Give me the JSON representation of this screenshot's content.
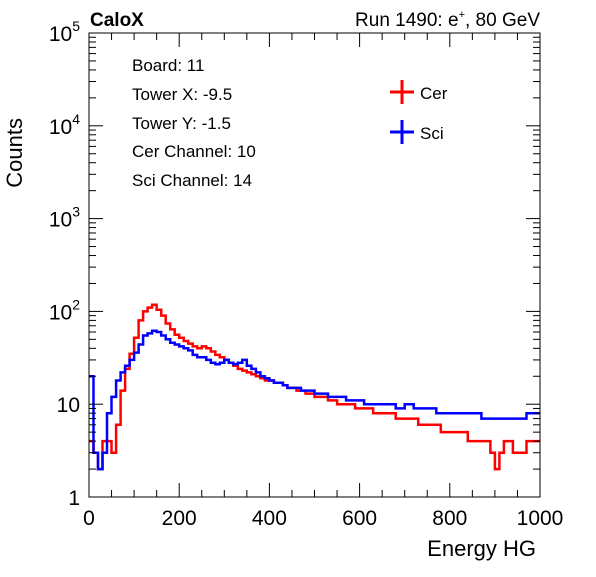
{
  "header": {
    "brand": "CaloX",
    "run_prefix": "Run 1490: e",
    "run_sup": "+",
    "run_suffix": ", 80 GeV"
  },
  "info_box": {
    "lines": [
      "Board: 11",
      "Tower X: -9.5",
      "Tower Y: -1.5",
      "Cer Channel: 10",
      "Sci Channel: 14"
    ]
  },
  "chart_data": {
    "type": "line",
    "title": "",
    "xlabel": "Energy HG",
    "ylabel": "Counts",
    "xlim": [
      0,
      1000
    ],
    "ylim": [
      1,
      100000
    ],
    "y_scale": "log",
    "grid": false,
    "legend_position": "top-right",
    "x_ticks": [
      "0",
      "200",
      "400",
      "600",
      "800",
      "1000"
    ],
    "y_ticks": [
      {
        "base": "1",
        "exp": ""
      },
      {
        "base": "10",
        "exp": ""
      },
      {
        "base": "10",
        "exp": "2"
      },
      {
        "base": "10",
        "exp": "3"
      },
      {
        "base": "10",
        "exp": "4"
      },
      {
        "base": "10",
        "exp": "5"
      }
    ],
    "series": [
      {
        "name": "Cer",
        "color": "#ff0000",
        "x": [
          0,
          10,
          20,
          30,
          40,
          50,
          60,
          70,
          80,
          90,
          100,
          110,
          120,
          130,
          140,
          150,
          160,
          170,
          180,
          190,
          200,
          210,
          220,
          230,
          240,
          250,
          260,
          270,
          280,
          290,
          300,
          310,
          320,
          330,
          340,
          350,
          360,
          370,
          380,
          390,
          400,
          410,
          420,
          430,
          440,
          450,
          460,
          470,
          480,
          490,
          500,
          510,
          520,
          530,
          540,
          550,
          560,
          570,
          580,
          590,
          600,
          610,
          620,
          630,
          640,
          650,
          660,
          670,
          680,
          690,
          700,
          710,
          720,
          730,
          740,
          750,
          760,
          770,
          780,
          790,
          800,
          810,
          820,
          830,
          840,
          850,
          860,
          870,
          880,
          890,
          900,
          910,
          920,
          930,
          940,
          950,
          960,
          970,
          980,
          990
        ],
        "y": [
          4,
          3,
          2,
          4,
          4,
          3,
          6,
          14,
          24,
          35,
          52,
          80,
          100,
          110,
          118,
          104,
          90,
          74,
          64,
          56,
          52,
          48,
          45,
          42,
          40,
          42,
          40,
          37,
          34,
          32,
          30,
          28,
          26,
          24,
          23,
          22,
          21,
          20,
          19,
          18,
          18,
          17,
          17,
          16,
          15,
          15,
          14,
          14,
          13,
          13,
          12,
          12,
          12,
          11,
          11,
          10,
          10,
          10,
          10,
          9,
          9,
          9,
          9,
          8,
          8,
          8,
          8,
          8,
          7,
          7,
          7,
          7,
          7,
          6,
          6,
          6,
          6,
          6,
          5,
          5,
          5,
          5,
          5,
          5,
          4,
          4,
          4,
          4,
          4,
          3,
          2,
          3,
          4,
          4,
          3,
          3,
          3,
          4,
          4,
          4
        ]
      },
      {
        "name": "Sci",
        "color": "#0000ff",
        "x": [
          0,
          10,
          20,
          30,
          40,
          50,
          60,
          70,
          80,
          90,
          100,
          110,
          120,
          130,
          140,
          150,
          160,
          170,
          180,
          190,
          200,
          210,
          220,
          230,
          240,
          250,
          260,
          270,
          280,
          290,
          300,
          310,
          320,
          330,
          340,
          350,
          360,
          370,
          380,
          390,
          400,
          410,
          420,
          430,
          440,
          450,
          460,
          470,
          480,
          490,
          500,
          510,
          520,
          530,
          540,
          550,
          560,
          570,
          580,
          590,
          600,
          610,
          620,
          630,
          640,
          650,
          660,
          670,
          680,
          690,
          700,
          710,
          720,
          730,
          740,
          750,
          760,
          770,
          780,
          790,
          800,
          810,
          820,
          830,
          840,
          850,
          860,
          870,
          880,
          890,
          900,
          910,
          920,
          930,
          940,
          950,
          960,
          970,
          980,
          990
        ],
        "y": [
          20,
          3,
          2,
          3,
          8,
          12,
          18,
          22,
          26,
          30,
          36,
          44,
          55,
          58,
          62,
          60,
          55,
          50,
          46,
          44,
          42,
          40,
          38,
          34,
          32,
          32,
          30,
          28,
          27,
          28,
          30,
          28,
          27,
          28,
          30,
          26,
          24,
          22,
          20,
          19,
          18,
          17,
          17,
          16,
          15,
          15,
          15,
          14,
          14,
          14,
          13,
          13,
          13,
          12,
          12,
          12,
          12,
          11,
          11,
          11,
          11,
          10,
          10,
          10,
          10,
          10,
          10,
          10,
          9,
          9,
          10,
          10,
          9,
          9,
          9,
          9,
          9,
          8,
          8,
          8,
          8,
          8,
          8,
          8,
          8,
          8,
          8,
          7,
          7,
          7,
          7,
          7,
          7,
          7,
          7,
          7,
          7,
          8,
          8,
          8
        ]
      }
    ]
  }
}
